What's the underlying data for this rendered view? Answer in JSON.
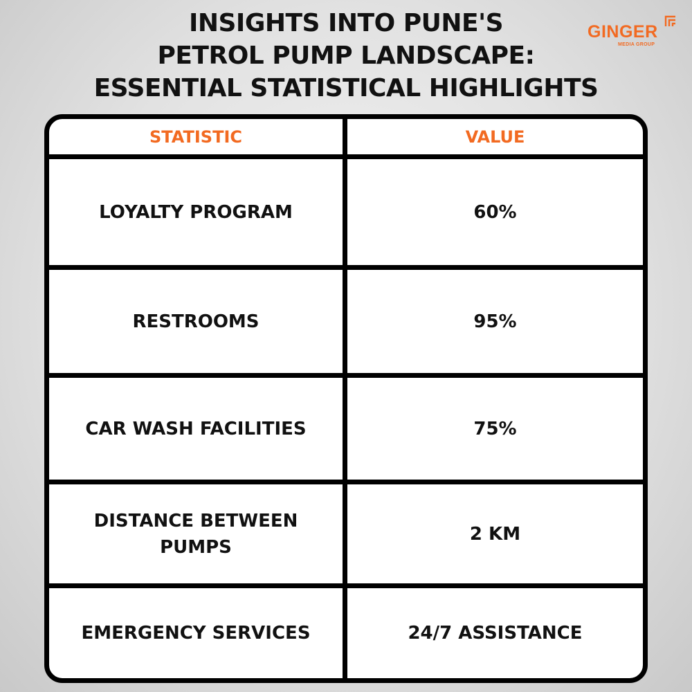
{
  "title": {
    "line1": "INSIGHTS INTO PUNE'S",
    "line2": "PETROL PUMP LANDSCAPE:",
    "line3": "ESSENTIAL STATISTICAL HIGHLIGHTS"
  },
  "logo": {
    "name": "GINGER",
    "tagline": "MEDIA GROUP",
    "icon": "ginger-logo-icon"
  },
  "colors": {
    "accent": "#f26a21",
    "text": "#111111",
    "border": "#000000"
  },
  "chart_data": {
    "type": "table",
    "columns": [
      "STATISTIC",
      "VALUE"
    ],
    "rows": [
      {
        "statistic": "LOYALTY PROGRAM",
        "value": "60%"
      },
      {
        "statistic": "RESTROOMS",
        "value": "95%"
      },
      {
        "statistic": "CAR WASH FACILITIES",
        "value": "75%"
      },
      {
        "statistic": "DISTANCE BETWEEN PUMPS",
        "value": "2 KM"
      },
      {
        "statistic": "EMERGENCY SERVICES",
        "value": "24/7 ASSISTANCE"
      }
    ]
  }
}
